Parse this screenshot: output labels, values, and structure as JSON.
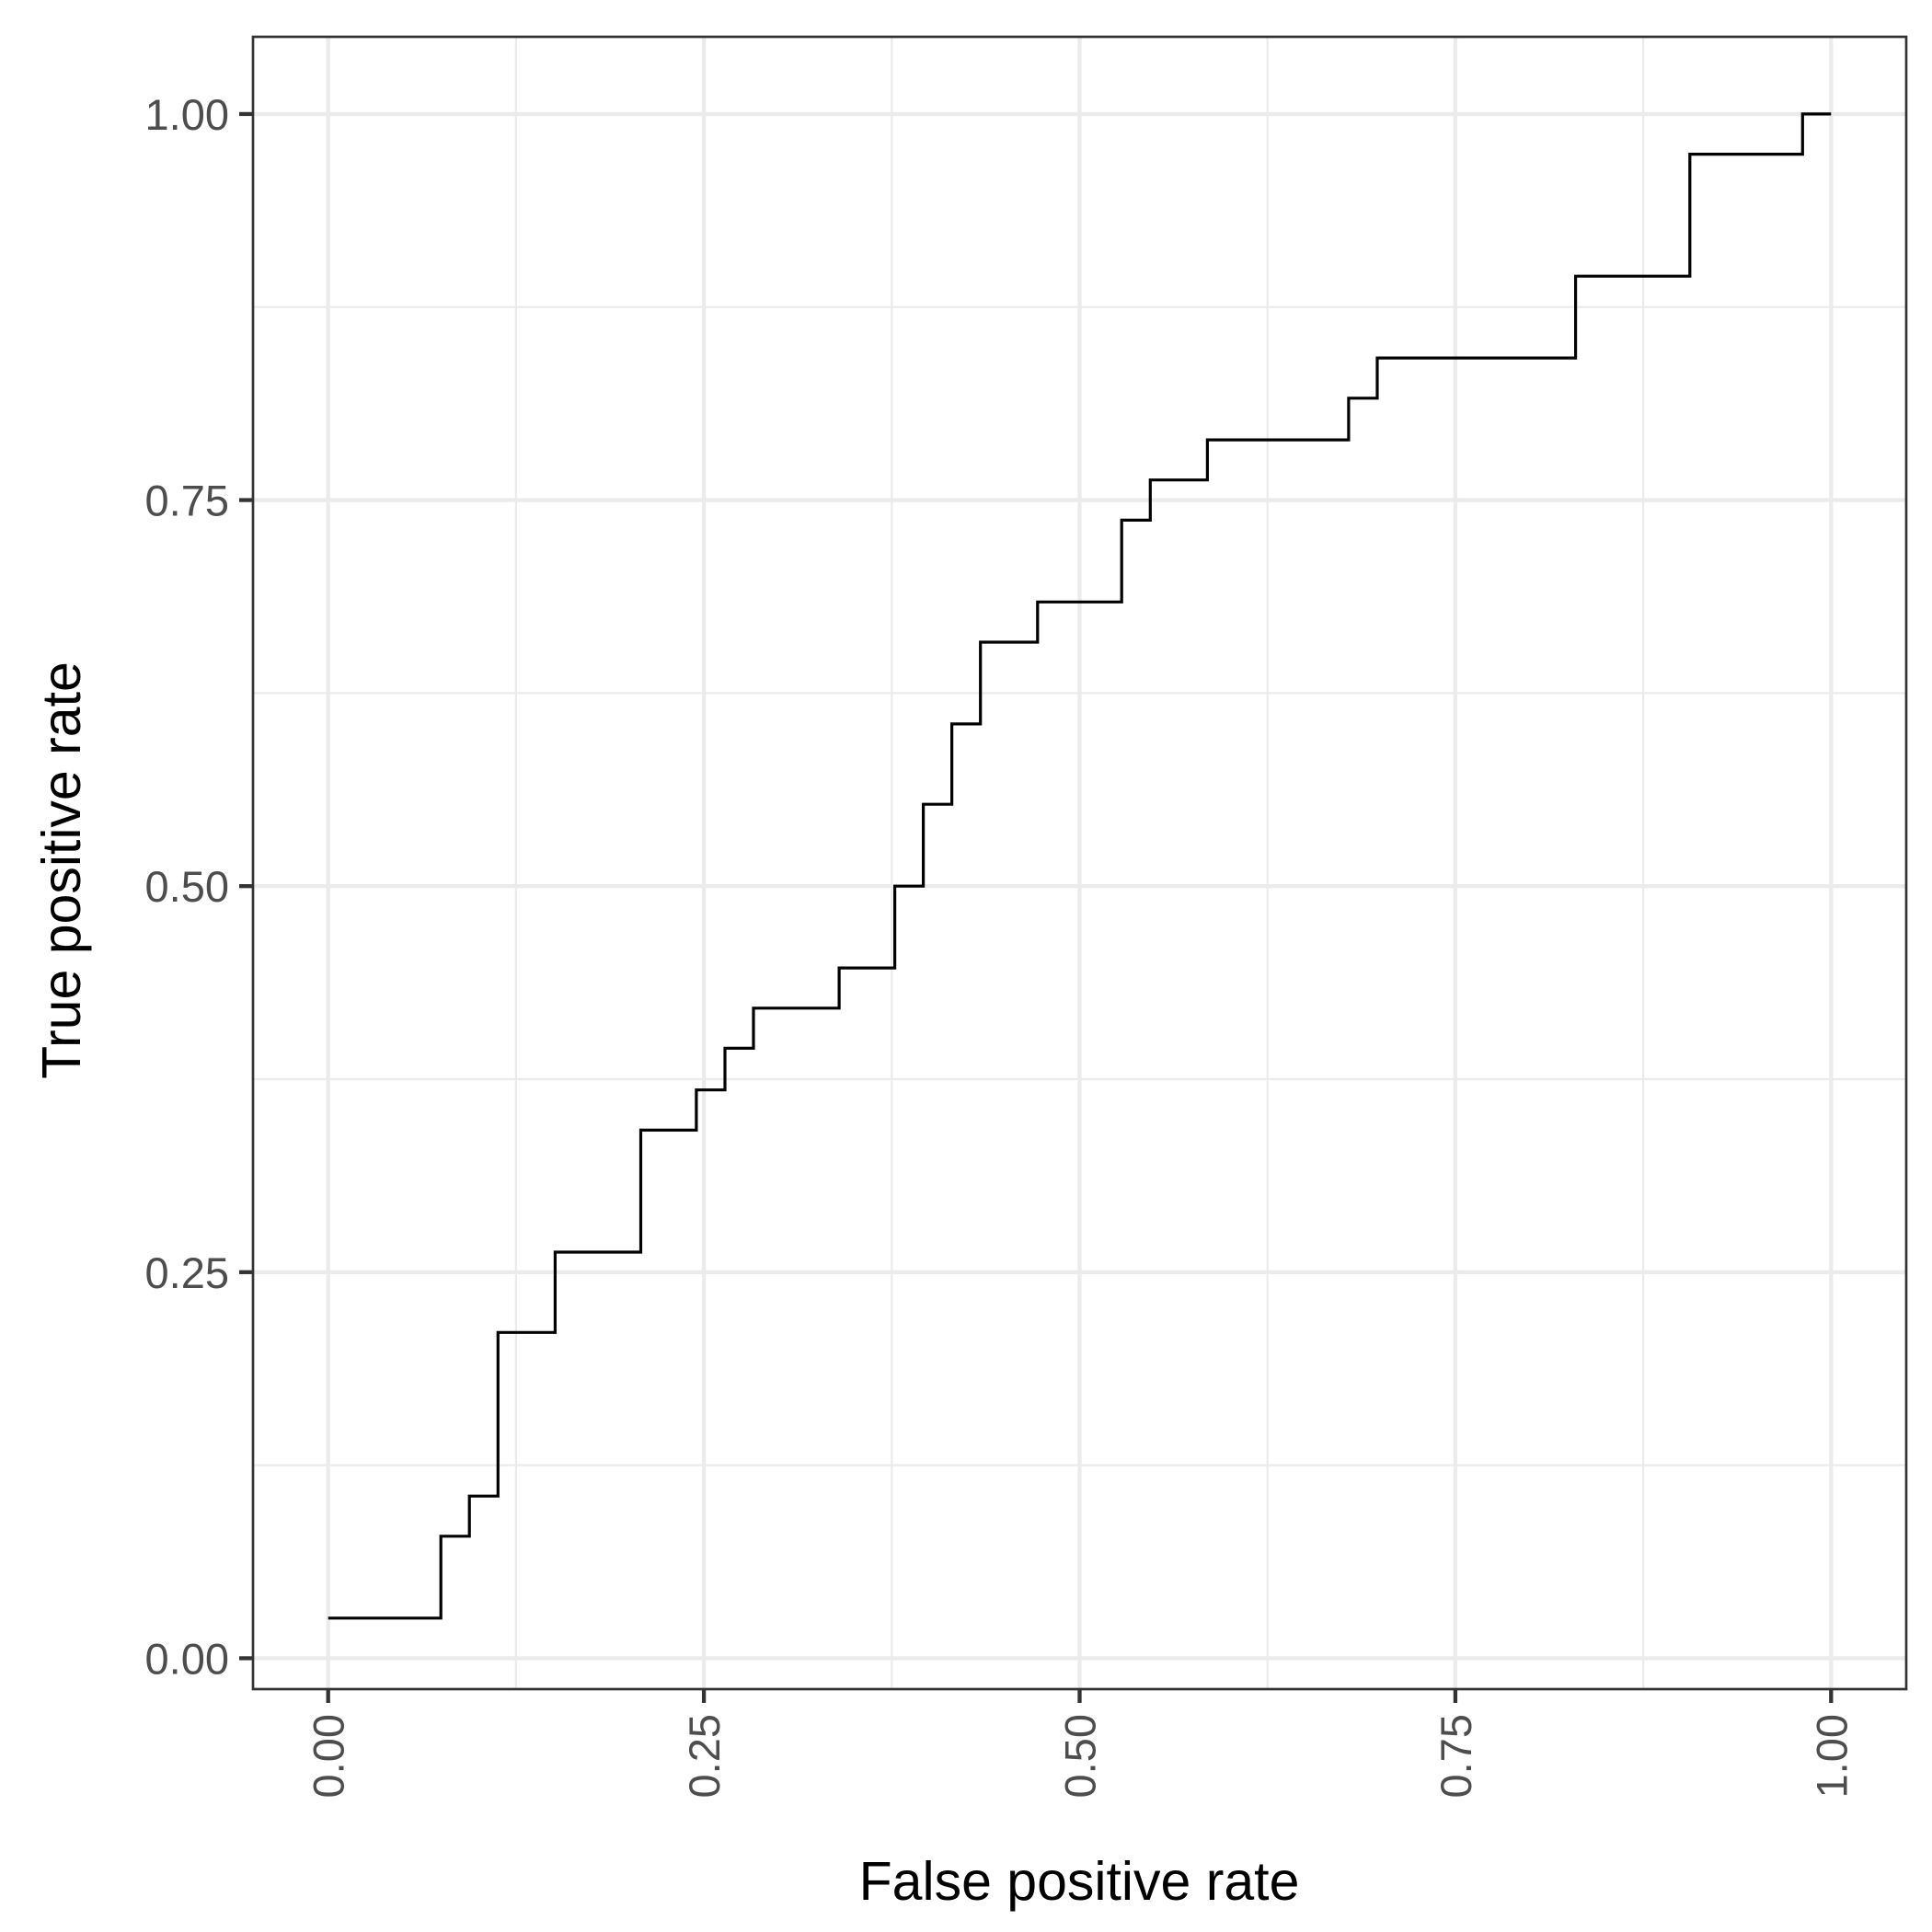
{
  "chart_data": {
    "type": "line",
    "step": true,
    "title": "",
    "xlabel": "False positive rate",
    "ylabel": "True positive rate",
    "xlim": [
      -0.05,
      1.05
    ],
    "ylim": [
      -0.02,
      1.05
    ],
    "x_ticks": [
      0,
      0.25,
      0.5,
      0.75,
      1.0
    ],
    "x_tick_labels": [
      "0.00",
      "0.25",
      "0.50",
      "0.75",
      "1.00"
    ],
    "y_ticks": [
      0,
      0.25,
      0.5,
      0.75,
      1.0
    ],
    "y_tick_labels": [
      "0.00",
      "0.25",
      "0.50",
      "0.75",
      "1.00"
    ],
    "x_tick_label_rotation": "vertical",
    "grid": true,
    "legend": "none",
    "line_color": "#000000",
    "series": [
      {
        "fpr": [
          0.0,
          0.075,
          0.075,
          0.094,
          0.094,
          0.113,
          0.113,
          0.151,
          0.151,
          0.208,
          0.208,
          0.245,
          0.245,
          0.264,
          0.264,
          0.283,
          0.283,
          0.34,
          0.34,
          0.377,
          0.377,
          0.396,
          0.396,
          0.415,
          0.415,
          0.434,
          0.434,
          0.472,
          0.472,
          0.528,
          0.528,
          0.547,
          0.547,
          0.585,
          0.585,
          0.679,
          0.679,
          0.698,
          0.698,
          0.83,
          0.83,
          0.906,
          0.906,
          0.981,
          0.981,
          1.0
        ],
        "tpr": [
          0.026,
          0.026,
          0.079,
          0.079,
          0.105,
          0.105,
          0.211,
          0.211,
          0.263,
          0.263,
          0.342,
          0.342,
          0.368,
          0.368,
          0.395,
          0.395,
          0.421,
          0.421,
          0.447,
          0.447,
          0.5,
          0.5,
          0.553,
          0.553,
          0.605,
          0.605,
          0.658,
          0.658,
          0.684,
          0.684,
          0.737,
          0.737,
          0.763,
          0.763,
          0.789,
          0.789,
          0.816,
          0.816,
          0.842,
          0.842,
          0.895,
          0.895,
          0.974,
          0.974,
          1.0,
          1.0
        ]
      }
    ]
  }
}
